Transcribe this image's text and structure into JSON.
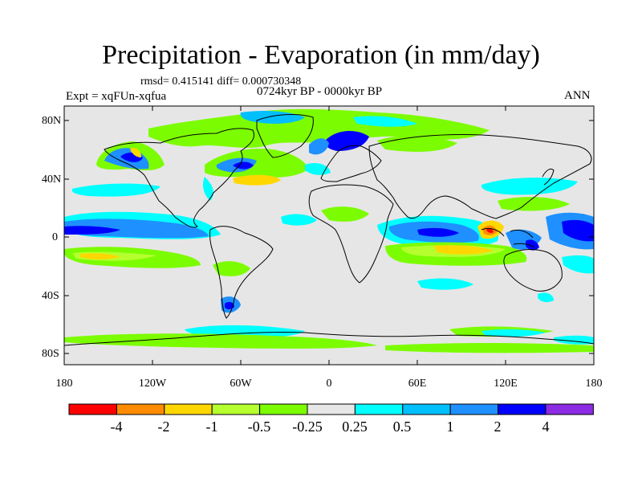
{
  "title": "Precipitation - Evaporation (in mm/day)",
  "stats": "rmsd= 0.415141  diff= 0.000730348",
  "period": "0724kyr BP - 0000kyr BP",
  "experiment": "Expt = xqFUn-xqfua",
  "season": "ANN",
  "y_axis": {
    "labels": [
      {
        "text": "80N",
        "lat": 80
      },
      {
        "text": "40N",
        "lat": 40
      },
      {
        "text": "0",
        "lat": 0
      },
      {
        "text": "40S",
        "lat": -40
      },
      {
        "text": "80S",
        "lat": -80
      }
    ]
  },
  "x_axis": {
    "labels": [
      {
        "text": "180",
        "lon": -180
      },
      {
        "text": "120W",
        "lon": -120
      },
      {
        "text": "60W",
        "lon": -60
      },
      {
        "text": "0",
        "lon": 0
      },
      {
        "text": "60E",
        "lon": 60
      },
      {
        "text": "120E",
        "lon": 120
      },
      {
        "text": "180",
        "lon": 180
      }
    ]
  },
  "colorbar": {
    "colors": [
      "#ff0000",
      "#ff8c00",
      "#ffd700",
      "#b5ff2f",
      "#7cfc00",
      "#e6e6e6",
      "#00ffff",
      "#00bfff",
      "#1e90ff",
      "#0000ff",
      "#8b2be2"
    ],
    "labels": [
      "-4",
      "-2",
      "-1",
      "-0.5",
      "-0.25",
      "0.25",
      "0.5",
      "1",
      "2",
      "4"
    ]
  },
  "map_background": "#e6e6e6",
  "coast_color": "#000000"
}
